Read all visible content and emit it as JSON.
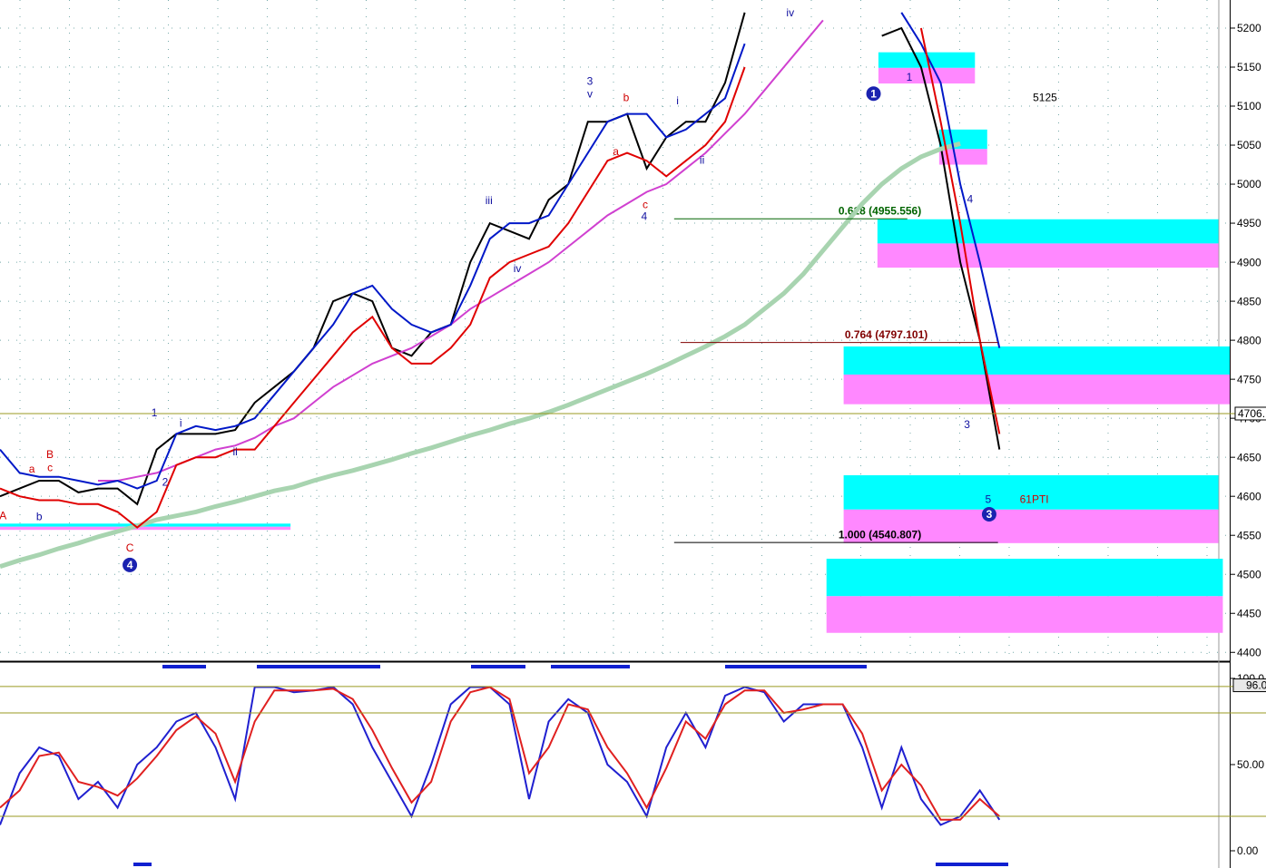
{
  "chart_data": [
    {
      "type": "line",
      "x": [
        0,
        4,
        8,
        12,
        16,
        20,
        24,
        28,
        32,
        36,
        40,
        44,
        48,
        52,
        56,
        60,
        64,
        68,
        72,
        76,
        80,
        84,
        88,
        92,
        96,
        100,
        104,
        108,
        112,
        116,
        120,
        124,
        128,
        132,
        136,
        140,
        144,
        148,
        152,
        156,
        160,
        164,
        168,
        172,
        176,
        180,
        184,
        188,
        192,
        196,
        200,
        204
      ],
      "xlim": [
        0,
        251
      ],
      "ylim": [
        4391,
        5236
      ],
      "yticks": [
        4400,
        4450,
        4500,
        4550,
        4600,
        4650,
        4700,
        4750,
        4800,
        4850,
        4900,
        4950,
        5000,
        5050,
        5100,
        5150,
        5200
      ],
      "grid": true,
      "series": [
        {
          "color": "#000000",
          "values": [
            4600,
            4610,
            4620,
            4620,
            4605,
            4610,
            4610,
            4590,
            4660,
            4680,
            4680,
            4680,
            4685,
            4720,
            4740,
            4760,
            4790,
            4850,
            4860,
            4850,
            4790,
            4780,
            4810,
            4820,
            4900,
            4950,
            4940,
            4930,
            4980,
            5000,
            5080,
            5080,
            5090,
            5020,
            5060,
            5080,
            5080,
            5130,
            5220,
            null,
            null,
            null,
            null,
            null,
            null,
            5190,
            5200,
            5150,
            5050,
            4900,
            4800,
            4660
          ]
        },
        {
          "color": "#a8d4b0",
          "values": [
            4510,
            4518,
            4525,
            4533,
            4540,
            4548,
            4555,
            4562,
            4570,
            4575,
            4580,
            4587,
            4593,
            4600,
            4607,
            4612,
            4620,
            4627,
            4633,
            4640,
            4647,
            4655,
            4662,
            4670,
            4678,
            4685,
            4693,
            4700,
            4708,
            4717,
            4727,
            4737,
            4747,
            4757,
            4768,
            4780,
            4792,
            4805,
            4820,
            4840,
            4860,
            4885,
            4915,
            4945,
            4975,
            5000,
            5020,
            5035,
            5045,
            5052,
            null,
            null
          ]
        },
        {
          "color": "#d040d0",
          "values": [
            null,
            null,
            null,
            null,
            null,
            4620,
            4620,
            4625,
            4630,
            4640,
            4650,
            4660,
            4665,
            4675,
            4690,
            4700,
            4720,
            4740,
            4755,
            4770,
            4780,
            4790,
            4805,
            4820,
            4840,
            4855,
            4870,
            4885,
            4900,
            4920,
            4940,
            4960,
            4975,
            4990,
            5000,
            5020,
            5040,
            5065,
            5090,
            5120,
            5150,
            5180,
            5210,
            null,
            null,
            null,
            null,
            null,
            null,
            null,
            null,
            null
          ]
        },
        {
          "color": "#0018c8",
          "values": [
            4660,
            4630,
            4625,
            4625,
            4620,
            4615,
            4620,
            4610,
            4620,
            4680,
            4690,
            4685,
            4690,
            4700,
            4730,
            4760,
            4790,
            4820,
            4860,
            4870,
            4840,
            4820,
            4810,
            4820,
            4870,
            4930,
            4950,
            4950,
            4960,
            5000,
            5040,
            5080,
            5090,
            5090,
            5060,
            5070,
            5090,
            5110,
            5180,
            null,
            null,
            null,
            null,
            null,
            null,
            null,
            5220,
            5180,
            5130,
            5000,
            4900,
            4790
          ]
        },
        {
          "color": "#e00000",
          "values": [
            4610,
            4600,
            4595,
            4595,
            4590,
            4590,
            4580,
            4560,
            4580,
            4640,
            4650,
            4650,
            4660,
            4660,
            4690,
            4720,
            4750,
            4780,
            4810,
            4830,
            4790,
            4770,
            4770,
            4790,
            4820,
            4880,
            4900,
            4910,
            4920,
            4950,
            4990,
            5030,
            5040,
            5030,
            5010,
            5030,
            5050,
            5080,
            5150,
            null,
            null,
            null,
            null,
            null,
            null,
            null,
            null,
            5200,
            5080,
            4950,
            4800,
            4680
          ]
        }
      ],
      "zones": [
        {
          "x": [
            0,
            59.3
          ],
          "top": 4565,
          "mid": 4561,
          "bottom": 4557
        },
        {
          "x": [
            179.3,
            199
          ],
          "top": 5169,
          "mid": 5149,
          "bottom": 5129
        },
        {
          "x": [
            191.7,
            201.5
          ],
          "top": 5070,
          "mid": 5045,
          "bottom": 5025
        },
        {
          "x": [
            179.1,
            248.7
          ],
          "top": 4955,
          "mid": 4924,
          "bottom": 4893
        },
        {
          "x": [
            172.2,
            251
          ],
          "top": 4792,
          "mid": 4756,
          "bottom": 4718
        },
        {
          "x": [
            172.2,
            248.7
          ],
          "top": 4627,
          "mid": 4583,
          "bottom": 4540
        },
        {
          "x": [
            168.7,
            249.6
          ],
          "top": 4520,
          "mid": 4472,
          "bottom": 4425
        }
      ],
      "fib_levels": [
        {
          "value": 4955.556,
          "label": "0.618 (4955.556)",
          "x": [
            137.6,
            185.2
          ],
          "color": "#006400"
        },
        {
          "value": 4797.101,
          "label": "0.764 (4797.101)",
          "x": [
            138.9,
            203.7
          ],
          "color": "#800000"
        },
        {
          "value": 4540.807,
          "label": "1.000 (4540.807)",
          "x": [
            137.6,
            203.7
          ],
          "color": "#000000"
        }
      ],
      "hline": {
        "value": 4706,
        "label": "4706."
      },
      "annotations": [
        {
          "text": "A",
          "x": 0.6,
          "y": 4574,
          "color": "#d00000"
        },
        {
          "text": "a",
          "x": 6.5,
          "y": 4634,
          "color": "#d00000"
        },
        {
          "text": "B",
          "x": 10.2,
          "y": 4653,
          "color": "#d00000"
        },
        {
          "text": "c",
          "x": 10.2,
          "y": 4636,
          "color": "#d00000"
        },
        {
          "text": "b",
          "x": 8,
          "y": 4573,
          "color": "#1010a0"
        },
        {
          "text": "C",
          "x": 26.5,
          "y": 4533,
          "color": "#d00000"
        },
        {
          "text": "1",
          "x": 31.5,
          "y": 4706,
          "color": "#1010a0"
        },
        {
          "text": "2",
          "x": 33.7,
          "y": 4617,
          "color": "#1010a0"
        },
        {
          "text": "i",
          "x": 36.9,
          "y": 4693,
          "color": "#1010a0"
        },
        {
          "text": "ii",
          "x": 48,
          "y": 4656,
          "color": "#1010a0"
        },
        {
          "text": "iii",
          "x": 99.8,
          "y": 4978,
          "color": "#1010a0"
        },
        {
          "text": "iv",
          "x": 105.6,
          "y": 4891,
          "color": "#1010a0"
        },
        {
          "text": "3",
          "x": 120.4,
          "y": 5131,
          "color": "#1010a0"
        },
        {
          "text": "v",
          "x": 120.4,
          "y": 5115,
          "color": "#1010a0"
        },
        {
          "text": "b",
          "x": 127.8,
          "y": 5110,
          "color": "#d00000"
        },
        {
          "text": "a",
          "x": 125.7,
          "y": 5041,
          "color": "#d00000"
        },
        {
          "text": "c",
          "x": 131.7,
          "y": 4973,
          "color": "#d00000"
        },
        {
          "text": "4",
          "x": 131.5,
          "y": 4958,
          "color": "#1010a0"
        },
        {
          "text": "i",
          "x": 138.3,
          "y": 5106,
          "color": "#1010a0"
        },
        {
          "text": "ii",
          "x": 143.3,
          "y": 5030,
          "color": "#1010a0"
        },
        {
          "text": "iv",
          "x": 161.3,
          "y": 5219,
          "color": "#1010a0"
        },
        {
          "text": "1",
          "x": 185.6,
          "y": 5136,
          "color": "#1010a0"
        },
        {
          "text": "4",
          "x": 198,
          "y": 4980,
          "color": "#1010a0"
        },
        {
          "text": "3",
          "x": 197.4,
          "y": 4691,
          "color": "#1010a0"
        },
        {
          "text": "5",
          "x": 201.7,
          "y": 4595,
          "color": "#1010a0"
        },
        {
          "text": "5125",
          "x": 213.3,
          "y": 5110,
          "color": "#000000"
        },
        {
          "text": "61PTI",
          "x": 211.1,
          "y": 4595,
          "color": "#d00000"
        }
      ],
      "circles": [
        {
          "text": "1",
          "x": 178.3,
          "y": 5116
        },
        {
          "text": "3",
          "x": 201.9,
          "y": 4577
        },
        {
          "text": "4",
          "x": 26.5,
          "y": 4512
        }
      ]
    },
    {
      "type": "line",
      "x": [
        0,
        4,
        8,
        12,
        16,
        20,
        24,
        28,
        32,
        36,
        40,
        44,
        48,
        52,
        56,
        60,
        64,
        68,
        72,
        76,
        80,
        84,
        88,
        92,
        96,
        100,
        104,
        108,
        112,
        116,
        120,
        124,
        128,
        132,
        136,
        140,
        144,
        148,
        152,
        156,
        160,
        164,
        168,
        172,
        176,
        180,
        184,
        188,
        192,
        196,
        200,
        204
      ],
      "xlim": [
        0,
        251
      ],
      "ylim": [
        -10,
        108.4
      ],
      "yticks": [
        {
          "value": 0,
          "label": "0.00"
        },
        {
          "value": 50,
          "label": "50.00"
        },
        {
          "value": 100,
          "label": "100.0"
        }
      ],
      "hlines": [
        20,
        80,
        95.3
      ],
      "marker": {
        "value": 96,
        "label": "96.0"
      },
      "series": [
        {
          "color": "#2020d0",
          "values": [
            15,
            45,
            60,
            55,
            30,
            40,
            25,
            50,
            60,
            75,
            80,
            60,
            30,
            95,
            95,
            92,
            93,
            95,
            85,
            60,
            40,
            20,
            50,
            85,
            95,
            95,
            85,
            30,
            75,
            88,
            80,
            50,
            40,
            20,
            60,
            80,
            60,
            90,
            95,
            92,
            75,
            85,
            85,
            85,
            60,
            25,
            60,
            30,
            15,
            20,
            35,
            18
          ]
        },
        {
          "color": "#e02020",
          "values": [
            25,
            35,
            55,
            57,
            40,
            37,
            32,
            42,
            55,
            70,
            78,
            68,
            40,
            75,
            93,
            93,
            93,
            94,
            88,
            70,
            48,
            28,
            40,
            75,
            92,
            95,
            88,
            45,
            60,
            85,
            82,
            60,
            45,
            25,
            48,
            75,
            65,
            85,
            93,
            93,
            80,
            82,
            85,
            85,
            68,
            35,
            50,
            38,
            18,
            18,
            30,
            20
          ]
        }
      ]
    }
  ]
}
